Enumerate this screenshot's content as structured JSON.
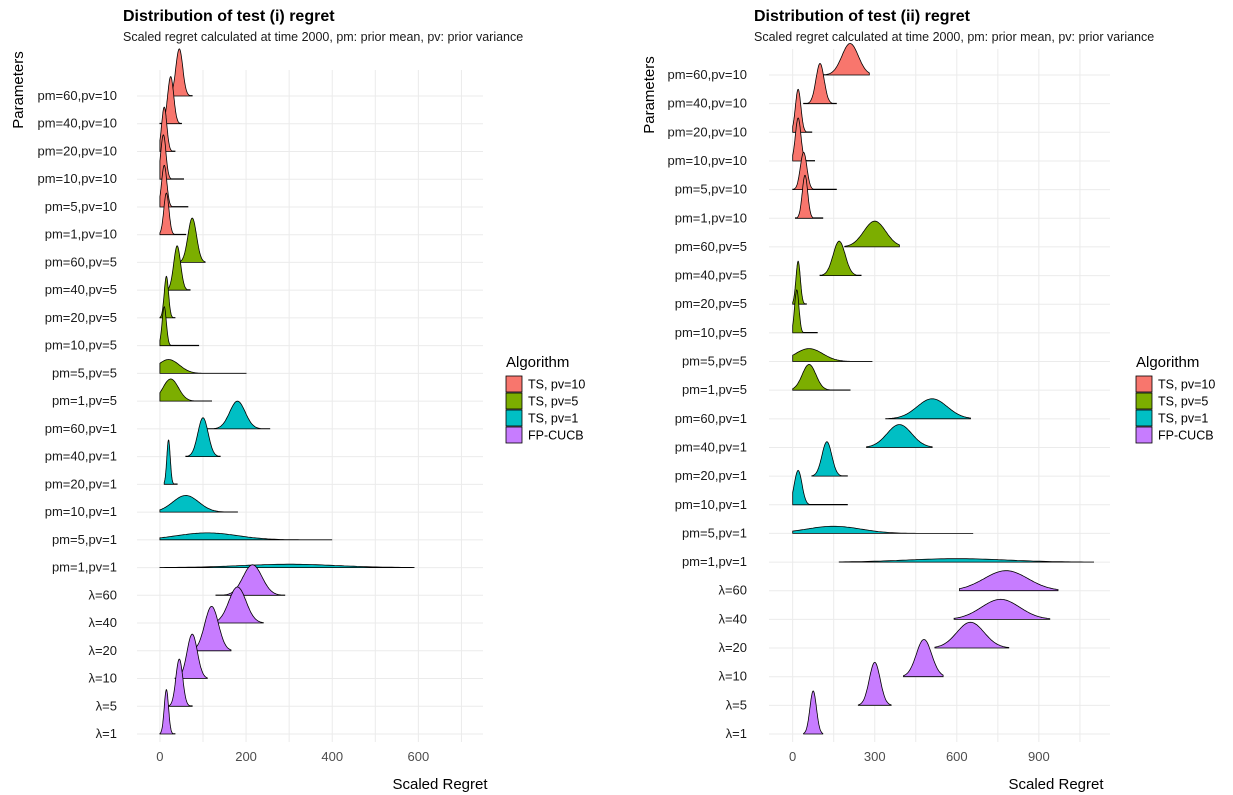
{
  "legend": {
    "title": "Algorithm",
    "entries": [
      {
        "label": "TS, pv=10",
        "color": "#F8766D"
      },
      {
        "label": "TS, pv=5",
        "color": "#7CAE00"
      },
      {
        "label": "TS, pv=1",
        "color": "#00BFC4"
      },
      {
        "label": "FP-CUCB",
        "color": "#C77CFF"
      }
    ]
  },
  "chart_data": [
    {
      "type": "ridgeline",
      "title": "Distribution of test (i) regret",
      "subtitle": "Scaled regret calculated at time 2000, pm: prior mean, pv: prior variance",
      "xlabel": "Scaled Regret",
      "ylabel": "Parameters",
      "xlim": [
        -30,
        750
      ],
      "xticks": [
        0,
        200,
        400,
        600
      ],
      "categories": [
        "λ=1",
        "λ=5",
        "λ=10",
        "λ=20",
        "λ=40",
        "λ=60",
        "pm=1,pv=1",
        "pm=5,pv=1",
        "pm=10,pv=1",
        "pm=20,pv=1",
        "pm=40,pv=1",
        "pm=60,pv=1",
        "pm=1,pv=5",
        "pm=5,pv=5",
        "pm=10,pv=5",
        "pm=20,pv=5",
        "pm=40,pv=5",
        "pm=60,pv=5",
        "pm=1,pv=10",
        "pm=5,pv=10",
        "pm=10,pv=10",
        "pm=20,pv=10",
        "pm=40,pv=10",
        "pm=60,pv=10"
      ],
      "ridges": [
        {
          "label": "λ=1",
          "group": "FP-CUCB",
          "mean": 15,
          "sd": 5,
          "range": [
            0,
            35
          ],
          "height": 1.6
        },
        {
          "label": "λ=5",
          "group": "FP-CUCB",
          "mean": 45,
          "sd": 8,
          "range": [
            20,
            75
          ],
          "height": 1.7
        },
        {
          "label": "λ=10",
          "group": "FP-CUCB",
          "mean": 75,
          "sd": 12,
          "range": [
            35,
            110
          ],
          "height": 1.6
        },
        {
          "label": "λ=20",
          "group": "FP-CUCB",
          "mean": 120,
          "sd": 16,
          "range": [
            70,
            165
          ],
          "height": 1.6
        },
        {
          "label": "λ=40",
          "group": "FP-CUCB",
          "mean": 180,
          "sd": 20,
          "range": [
            105,
            240
          ],
          "height": 1.3
        },
        {
          "label": "λ=60",
          "group": "FP-CUCB",
          "mean": 215,
          "sd": 22,
          "range": [
            130,
            290
          ],
          "height": 1.1
        },
        {
          "label": "pm=1,pv=1",
          "group": "TS, pv=1",
          "mean": 300,
          "sd": 110,
          "range": [
            0,
            590
          ],
          "height": 0.12
        },
        {
          "label": "pm=5,pv=1",
          "group": "TS, pv=1",
          "mean": 110,
          "sd": 70,
          "range": [
            0,
            400
          ],
          "height": 0.25
        },
        {
          "label": "pm=10,pv=1",
          "group": "TS, pv=1",
          "mean": 60,
          "sd": 30,
          "range": [
            0,
            180
          ],
          "height": 0.6
        },
        {
          "label": "pm=20,pv=1",
          "group": "TS, pv=1",
          "mean": 20,
          "sd": 4,
          "range": [
            10,
            40
          ],
          "height": 1.6
        },
        {
          "label": "pm=40,pv=1",
          "group": "TS, pv=1",
          "mean": 100,
          "sd": 12,
          "range": [
            60,
            140
          ],
          "height": 1.4
        },
        {
          "label": "pm=60,pv=1",
          "group": "TS, pv=1",
          "mean": 180,
          "sd": 18,
          "range": [
            110,
            255
          ],
          "height": 1.0
        },
        {
          "label": "pm=1,pv=5",
          "group": "TS, pv=5",
          "mean": 25,
          "sd": 18,
          "range": [
            0,
            120
          ],
          "height": 0.8
        },
        {
          "label": "pm=5,pv=5",
          "group": "TS, pv=5",
          "mean": 20,
          "sd": 25,
          "range": [
            0,
            200
          ],
          "height": 0.5
        },
        {
          "label": "pm=10,pv=5",
          "group": "TS, pv=5",
          "mean": 10,
          "sd": 5,
          "range": [
            0,
            90
          ],
          "height": 1.4
        },
        {
          "label": "pm=20,pv=5",
          "group": "TS, pv=5",
          "mean": 15,
          "sd": 5,
          "range": [
            0,
            35
          ],
          "height": 1.5
        },
        {
          "label": "pm=40,pv=5",
          "group": "TS, pv=5",
          "mean": 40,
          "sd": 8,
          "range": [
            15,
            70
          ],
          "height": 1.6
        },
        {
          "label": "pm=60,pv=5",
          "group": "TS, pv=5",
          "mean": 75,
          "sd": 10,
          "range": [
            40,
            105
          ],
          "height": 1.6
        },
        {
          "label": "pm=1,pv=10",
          "group": "TS, pv=10",
          "mean": 15,
          "sd": 6,
          "range": [
            0,
            60
          ],
          "height": 1.5
        },
        {
          "label": "pm=5,pv=10",
          "group": "TS, pv=10",
          "mean": 10,
          "sd": 6,
          "range": [
            0,
            65
          ],
          "height": 1.5
        },
        {
          "label": "pm=10,pv=10",
          "group": "TS, pv=10",
          "mean": 8,
          "sd": 6,
          "range": [
            0,
            55
          ],
          "height": 1.6
        },
        {
          "label": "pm=20,pv=10",
          "group": "TS, pv=10",
          "mean": 10,
          "sd": 6,
          "range": [
            0,
            35
          ],
          "height": 1.6
        },
        {
          "label": "pm=40,pv=10",
          "group": "TS, pv=10",
          "mean": 25,
          "sd": 7,
          "range": [
            0,
            50
          ],
          "height": 1.7
        },
        {
          "label": "pm=60,pv=10",
          "group": "TS, pv=10",
          "mean": 45,
          "sd": 8,
          "range": [
            20,
            75
          ],
          "height": 1.7
        }
      ]
    },
    {
      "type": "ridgeline",
      "title": "Distribution of test (ii) regret",
      "subtitle": "Scaled regret calculated at time 2000, pm: prior mean, pv: prior variance",
      "xlabel": "Scaled Regret",
      "ylabel": "Parameters",
      "xlim": [
        -50,
        1160
      ],
      "xticks": [
        0,
        300,
        600,
        900
      ],
      "categories": [
        "λ=1",
        "λ=5",
        "λ=10",
        "λ=20",
        "λ=40",
        "λ=60",
        "pm=1,pv=1",
        "pm=5,pv=1",
        "pm=10,pv=1",
        "pm=20,pv=1",
        "pm=40,pv=1",
        "pm=60,pv=1",
        "pm=1,pv=5",
        "pm=5,pv=5",
        "pm=10,pv=5",
        "pm=20,pv=5",
        "pm=40,pv=5",
        "pm=60,pv=5",
        "pm=1,pv=10",
        "pm=5,pv=10",
        "pm=10,pv=10",
        "pm=20,pv=10",
        "pm=40,pv=10",
        "pm=60,pv=10"
      ],
      "ridges": [
        {
          "label": "λ=1",
          "group": "FP-CUCB",
          "mean": 75,
          "sd": 12,
          "range": [
            40,
            110
          ],
          "height": 1.5
        },
        {
          "label": "λ=5",
          "group": "FP-CUCB",
          "mean": 300,
          "sd": 20,
          "range": [
            240,
            360
          ],
          "height": 1.5
        },
        {
          "label": "λ=10",
          "group": "FP-CUCB",
          "mean": 480,
          "sd": 28,
          "range": [
            405,
            550
          ],
          "height": 1.3
        },
        {
          "label": "λ=20",
          "group": "FP-CUCB",
          "mean": 650,
          "sd": 50,
          "range": [
            520,
            790
          ],
          "height": 0.9
        },
        {
          "label": "λ=40",
          "group": "FP-CUCB",
          "mean": 760,
          "sd": 70,
          "range": [
            590,
            940
          ],
          "height": 0.7
        },
        {
          "label": "λ=60",
          "group": "FP-CUCB",
          "mean": 780,
          "sd": 80,
          "range": [
            610,
            970
          ],
          "height": 0.7
        },
        {
          "label": "pm=1,pv=1",
          "group": "TS, pv=1",
          "mean": 600,
          "sd": 180,
          "range": [
            170,
            1100
          ],
          "height": 0.12
        },
        {
          "label": "pm=5,pv=1",
          "group": "TS, pv=1",
          "mean": 150,
          "sd": 100,
          "range": [
            0,
            660
          ],
          "height": 0.25
        },
        {
          "label": "pm=10,pv=1",
          "group": "TS, pv=1",
          "mean": 20,
          "sd": 14,
          "range": [
            0,
            200
          ],
          "height": 1.2
        },
        {
          "label": "pm=20,pv=1",
          "group": "TS, pv=1",
          "mean": 125,
          "sd": 18,
          "range": [
            70,
            200
          ],
          "height": 1.2
        },
        {
          "label": "pm=40,pv=1",
          "group": "TS, pv=1",
          "mean": 390,
          "sd": 45,
          "range": [
            270,
            510
          ],
          "height": 0.8
        },
        {
          "label": "pm=60,pv=1",
          "group": "TS, pv=1",
          "mean": 510,
          "sd": 55,
          "range": [
            340,
            650
          ],
          "height": 0.7
        },
        {
          "label": "pm=1,pv=5",
          "group": "TS, pv=5",
          "mean": 60,
          "sd": 25,
          "range": [
            0,
            210
          ],
          "height": 0.9
        },
        {
          "label": "pm=5,pv=5",
          "group": "TS, pv=5",
          "mean": 60,
          "sd": 50,
          "range": [
            0,
            290
          ],
          "height": 0.45
        },
        {
          "label": "pm=10,pv=5",
          "group": "TS, pv=5",
          "mean": 15,
          "sd": 8,
          "range": [
            0,
            90
          ],
          "height": 1.5
        },
        {
          "label": "pm=20,pv=5",
          "group": "TS, pv=5",
          "mean": 20,
          "sd": 8,
          "range": [
            0,
            50
          ],
          "height": 1.5
        },
        {
          "label": "pm=40,pv=5",
          "group": "TS, pv=5",
          "mean": 170,
          "sd": 22,
          "range": [
            100,
            250
          ],
          "height": 1.2
        },
        {
          "label": "pm=60,pv=5",
          "group": "TS, pv=5",
          "mean": 300,
          "sd": 40,
          "range": [
            190,
            390
          ],
          "height": 0.9
        },
        {
          "label": "pm=1,pv=10",
          "group": "TS, pv=10",
          "mean": 45,
          "sd": 10,
          "range": [
            10,
            110
          ],
          "height": 1.5
        },
        {
          "label": "pm=5,pv=10",
          "group": "TS, pv=10",
          "mean": 40,
          "sd": 12,
          "range": [
            0,
            160
          ],
          "height": 1.3
        },
        {
          "label": "pm=10,pv=10",
          "group": "TS, pv=10",
          "mean": 20,
          "sd": 10,
          "range": [
            0,
            80
          ],
          "height": 1.5
        },
        {
          "label": "pm=20,pv=10",
          "group": "TS, pv=10",
          "mean": 20,
          "sd": 10,
          "range": [
            0,
            70
          ],
          "height": 1.5
        },
        {
          "label": "pm=40,pv=10",
          "group": "TS, pv=10",
          "mean": 100,
          "sd": 15,
          "range": [
            40,
            160
          ],
          "height": 1.4
        },
        {
          "label": "pm=60,pv=10",
          "group": "TS, pv=10",
          "mean": 210,
          "sd": 30,
          "range": [
            110,
            280
          ],
          "height": 1.1
        }
      ]
    }
  ]
}
